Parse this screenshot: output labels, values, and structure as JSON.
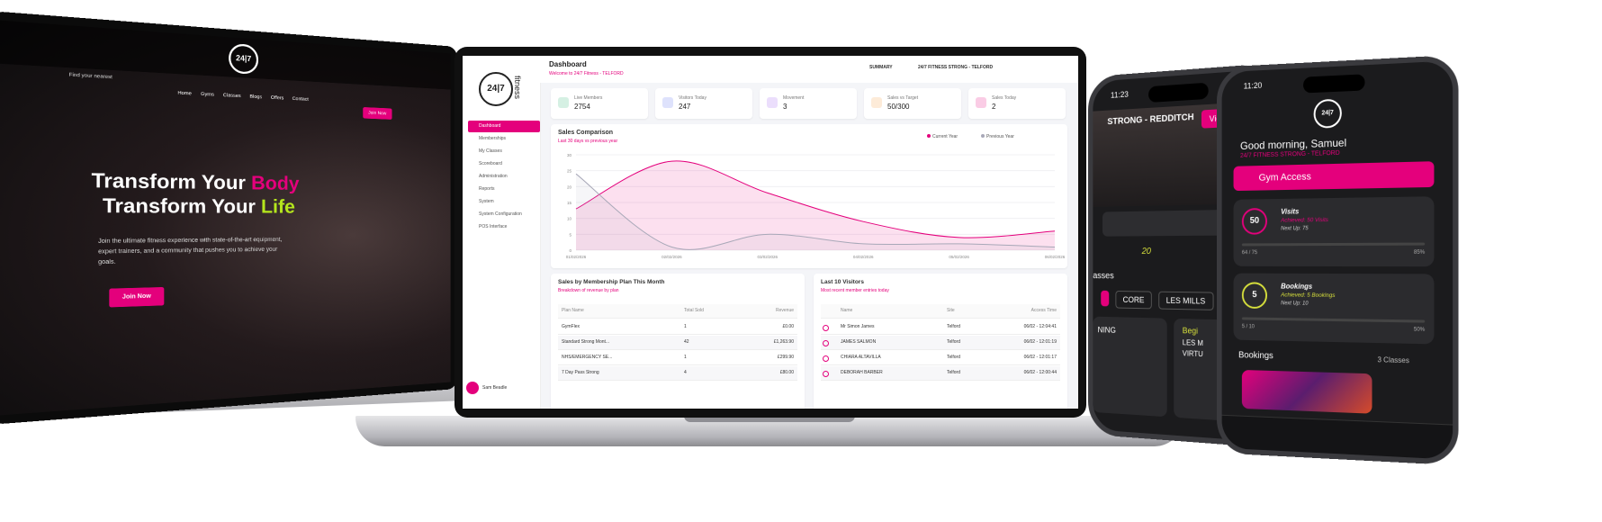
{
  "left_laptop": {
    "nav_note": "Find your nearest",
    "menu": [
      "Home",
      "Gyms",
      "Classes",
      "Blogs",
      "Offers",
      "Contact"
    ],
    "nav_button": "Join Now",
    "headline_1": "Transform Your",
    "headline_1_accent": "Body",
    "headline_2": "Transform Your",
    "headline_2_accent": "Life",
    "body": "Join the ultimate fitness experience with state-of-the-art equipment, expert trainers, and a community that pushes you to achieve your goals.",
    "cta": "Join Now"
  },
  "dashboard": {
    "logo": "24|7",
    "logo_word": "fitness",
    "title": "Dashboard",
    "subtitle": "Welcome to 24/7 Fitness - TELFORD",
    "summary": "SUMMARY",
    "location": "24/7 FITNESS STRONG - TELFORD",
    "sidebar": [
      "Dashboard",
      "Memberships",
      "My Classes",
      "Scoreboard",
      "Administration",
      "Reports",
      "System",
      "System Configuration",
      "POS Interface"
    ],
    "user": "Sam Beadle",
    "stats": [
      {
        "label": "Live Members",
        "value": "2754"
      },
      {
        "label": "Visitors Today",
        "value": "247"
      },
      {
        "label": "Movement",
        "value": "3"
      },
      {
        "label": "Sales vs Target",
        "value": "50/300"
      },
      {
        "label": "Sales Today",
        "value": "2"
      }
    ],
    "sales_chart": {
      "type": "line",
      "title": "Sales Comparison",
      "subtitle": "Last 30 days vs previous year",
      "categories": [
        "01/02/2026",
        "02/02/2026",
        "03/02/2026",
        "04/02/2026",
        "05/02/2026",
        "06/02/2026"
      ],
      "series": [
        {
          "name": "Current Year",
          "color": "#e4007c",
          "values": [
            13,
            28,
            18,
            9,
            4,
            6
          ]
        },
        {
          "name": "Previous Year",
          "color": "#a8a8b8",
          "values": [
            24,
            1,
            5,
            2,
            2,
            1
          ]
        }
      ],
      "ylim": [
        0,
        30
      ],
      "yticks": [
        0,
        5,
        10,
        15,
        20,
        25,
        30
      ]
    },
    "membership_table": {
      "title": "Sales by Membership Plan This Month",
      "subtitle": "Breakdown of revenue by plan",
      "columns": [
        "Plan Name",
        "Total Sold",
        "Revenue"
      ],
      "rows": [
        [
          "GymFlex",
          "1",
          "£0.00"
        ],
        [
          "Standard Strong Mont...",
          "42",
          "£1,263.90"
        ],
        [
          "NHS/EMERGENCY SE...",
          "1",
          "£299.90"
        ],
        [
          "7 Day Pass Strong",
          "4",
          "£80.00"
        ]
      ]
    },
    "visitors": {
      "title": "Last 10 Visitors",
      "subtitle": "Most recent member entries today",
      "columns": [
        "Name",
        "Site",
        "Access Time"
      ],
      "rows": [
        [
          "Mr Simon James",
          "Telford",
          "06/02 - 12:04:41"
        ],
        [
          "JAMES SALMON",
          "Telford",
          "06/02 - 12:01:19"
        ],
        [
          "CHIARA ALTAVILLA",
          "Telford",
          "06/02 - 12:01:17"
        ],
        [
          "DEBORAH BARBER",
          "Telford",
          "06/02 - 12:00:44"
        ]
      ]
    }
  },
  "phone_left": {
    "time": "11:23",
    "gym": "STRONG - REDDITCH",
    "view_all": "View All",
    "count": "20",
    "classes_heading": "asses",
    "chips": [
      "CORE",
      "LES MILLS"
    ],
    "card_a": "NING",
    "card_b": [
      "Begi",
      "LES M",
      "VIRTU"
    ]
  },
  "phone_right": {
    "time": "11:20",
    "greeting": "Good morning, Samuel",
    "gym": "24/7 FITNESS STRONG - TELFORD",
    "gym_access": "Gym Access",
    "visits": {
      "title": "Visits",
      "achieved": "Achieved: 50 Visits",
      "next": "Next Up: 75",
      "badge": "50",
      "progress": "64 / 75",
      "percent": "85%"
    },
    "bookings": {
      "title": "Bookings",
      "achieved": "Achieved: 5 Bookings",
      "next": "Next Up: 10",
      "badge": "5",
      "progress": "5 / 10",
      "percent": "50%"
    },
    "bookings_heading": "Bookings",
    "classes_count": "3 Classes"
  }
}
